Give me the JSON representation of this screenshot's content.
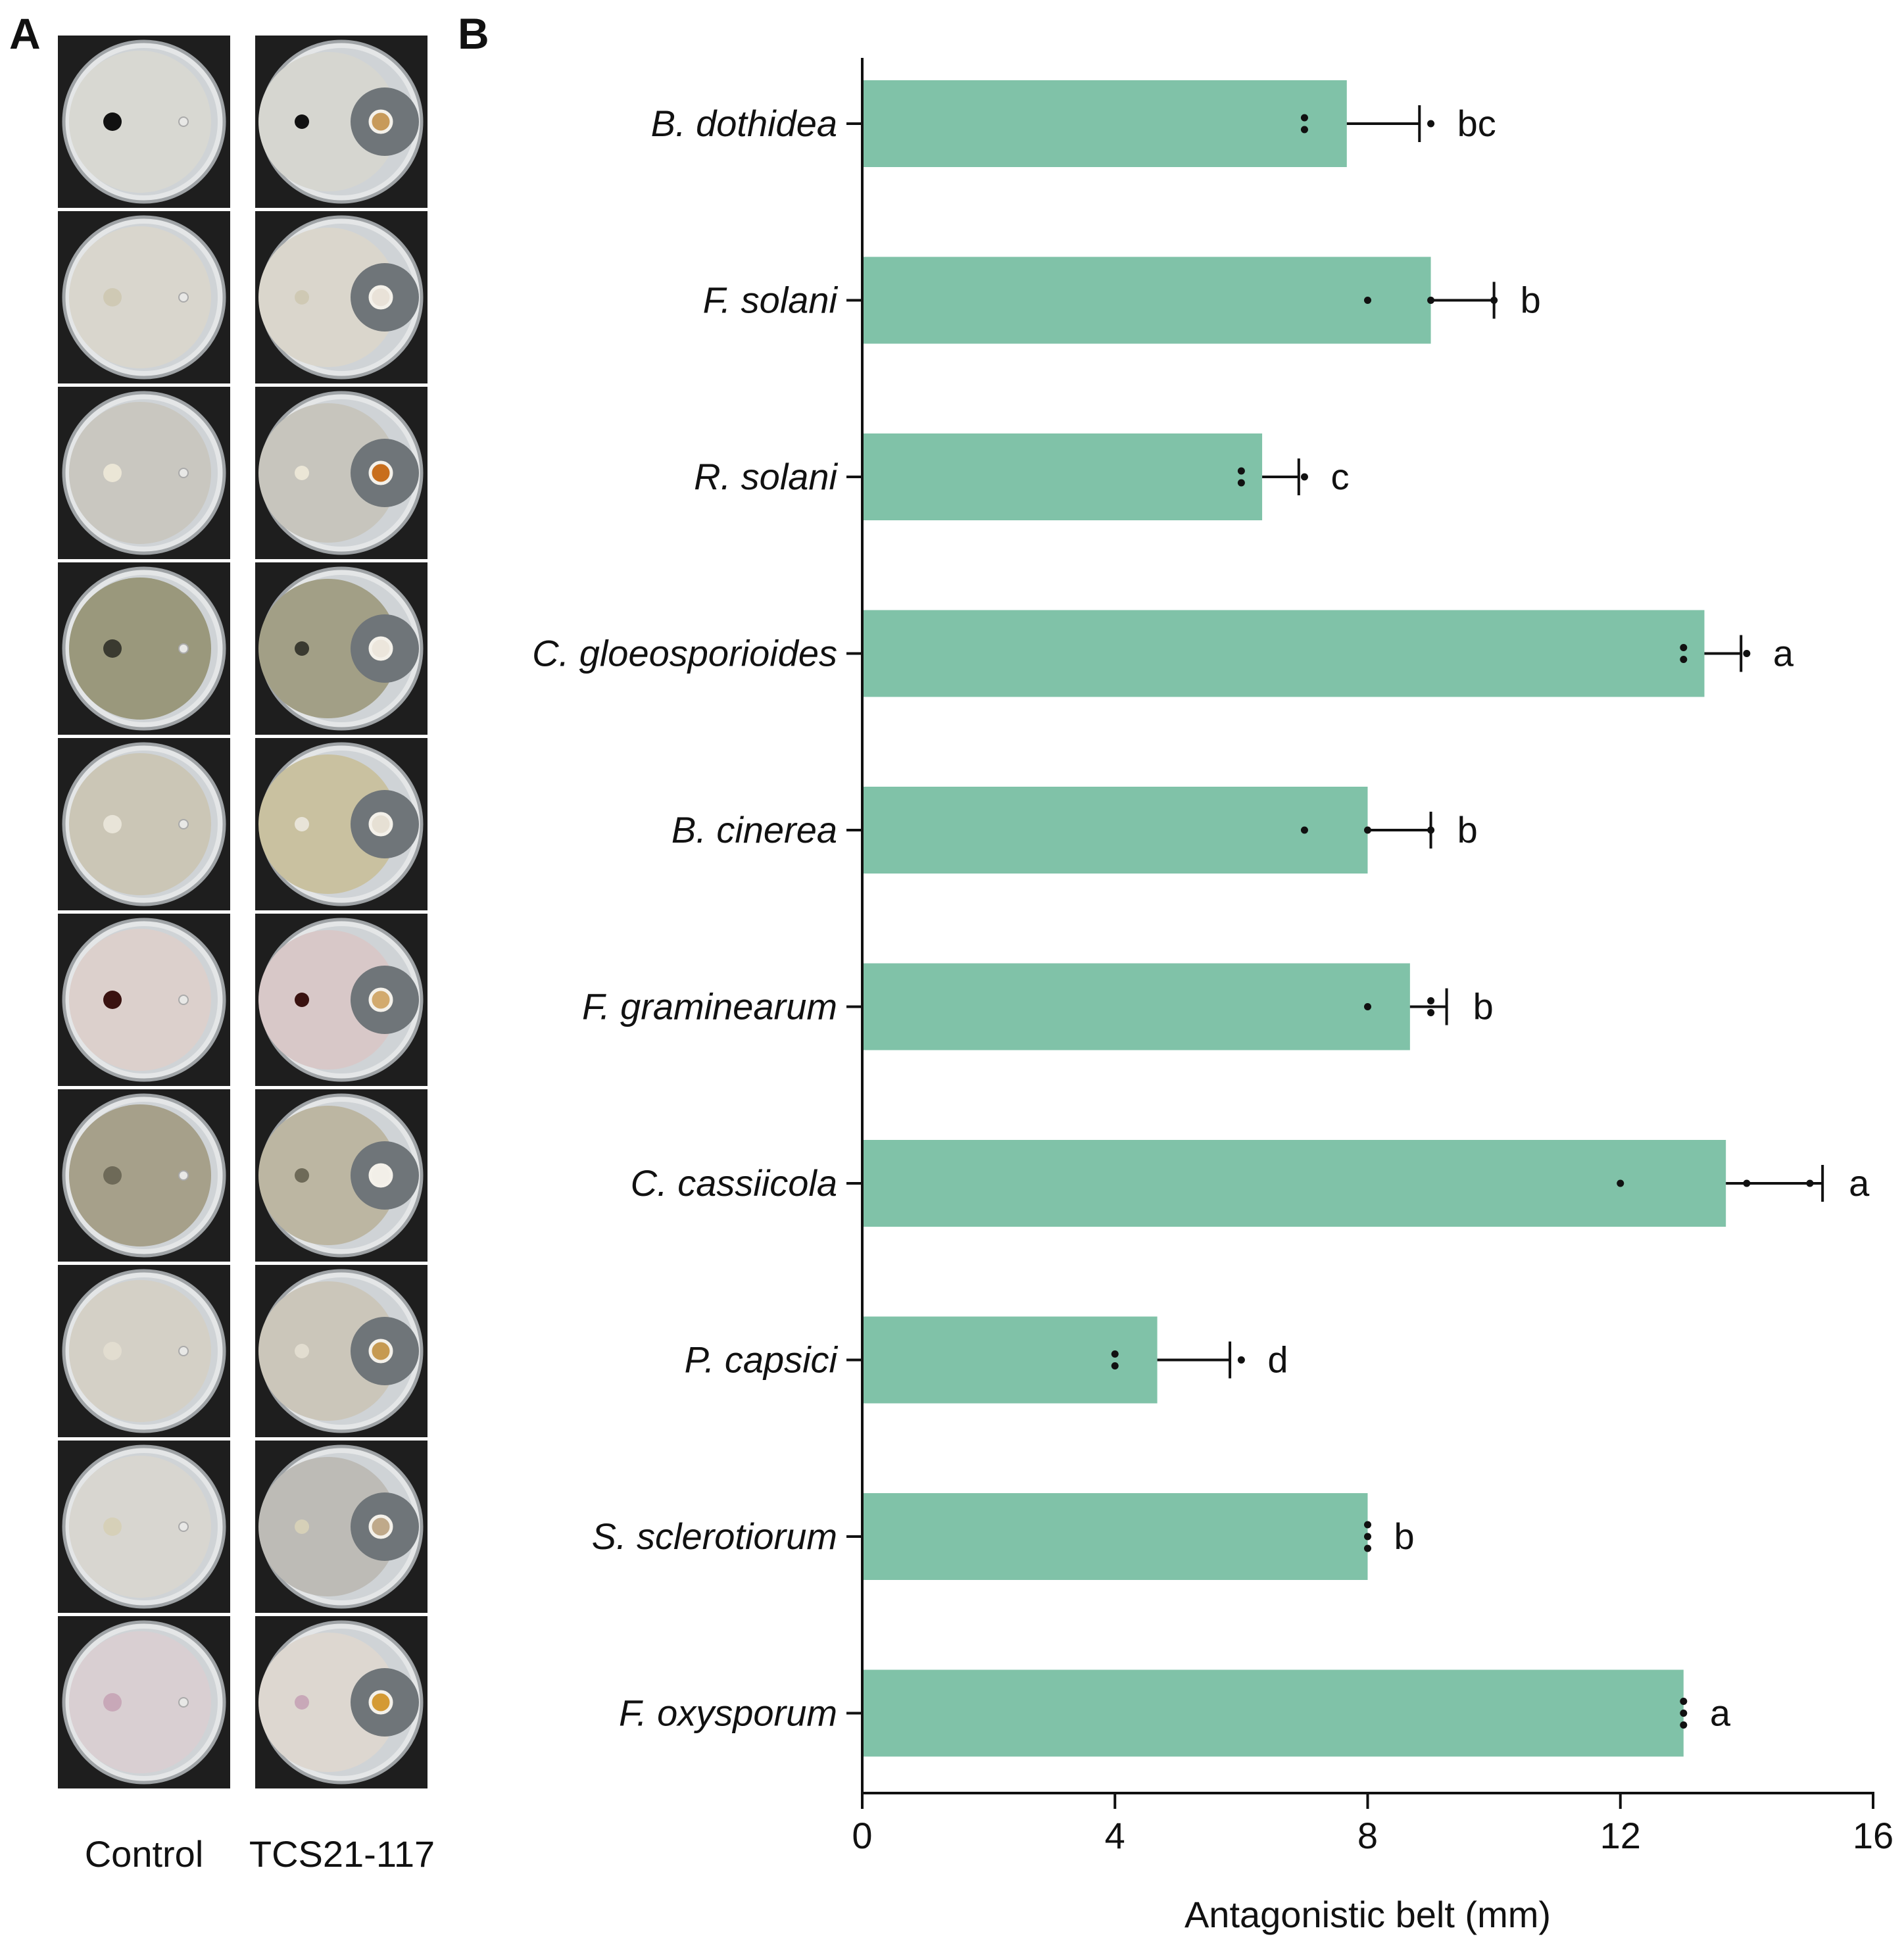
{
  "panels": {
    "a_letter": "A",
    "b_letter": "B"
  },
  "panel_a": {
    "column_labels": [
      "Control",
      "TCS21-117"
    ],
    "rows": [
      {
        "pathogen": "B. dothidea",
        "control_fungus": "#d8d8d2",
        "control_center": "#111111",
        "treated_fungus": "#d6d6d0",
        "well": "#c79a5a"
      },
      {
        "pathogen": "F. solani",
        "control_fungus": "#d9d6cd",
        "control_center": "#cfc9b4",
        "treated_fungus": "#dad6cc",
        "well": "#e9e2d8"
      },
      {
        "pathogen": "R. solani",
        "control_fungus": "#c9c7c0",
        "control_center": "#ebe6d6",
        "treated_fungus": "#c7c5bd",
        "well": "#c86e1c"
      },
      {
        "pathogen": "C. gloeosporioides",
        "control_fungus": "#9a987c",
        "control_center": "#3a3a30",
        "treated_fungus": "#a29f86",
        "well": "#ece6dc"
      },
      {
        "pathogen": "B. cinerea",
        "control_fungus": "#cbc6b6",
        "control_center": "#e8e4d8",
        "treated_fungus": "#c9c1a0",
        "well": "#e6e0d4"
      },
      {
        "pathogen": "F. graminearum",
        "control_fungus": "#dcd0cc",
        "control_center": "#3a1210",
        "treated_fungus": "#d8c8c8",
        "well": "#d2aa6e"
      },
      {
        "pathogen": "C. cassiicola",
        "control_fungus": "#a6a08a",
        "control_center": "#6e6a58",
        "treated_fungus": "#bcb6a2",
        "well": "#f2efe8"
      },
      {
        "pathogen": "P. capsici",
        "control_fungus": "#d4d0c6",
        "control_center": "#e2ddd0",
        "treated_fungus": "#cbc6ba",
        "well": "#c69a52"
      },
      {
        "pathogen": "S. sclerotiorum",
        "control_fungus": "#d8d6d0",
        "control_center": "#d6d0b8",
        "treated_fungus": "#bdbbb6",
        "well": "#bfa98a"
      },
      {
        "pathogen": "F. oxysporum",
        "control_fungus": "#d9cfd2",
        "control_center": "#c8a8b8",
        "treated_fungus": "#ddd7d0",
        "well": "#d49a34"
      }
    ]
  },
  "chart_data": {
    "type": "bar",
    "orientation": "horizontal",
    "categories": [
      "B. dothidea",
      "F. solani",
      "R. solani",
      "C. gloeosporioides",
      "B. cinerea",
      "F. graminearum",
      "C. cassiicola",
      "P. capsici",
      "S. sclerotiorum",
      "F. oxysporum"
    ],
    "values": [
      7.67,
      9.0,
      6.33,
      13.33,
      8.0,
      8.67,
      13.67,
      4.67,
      8.0,
      13.0
    ],
    "errors": [
      1.15,
      1.0,
      0.58,
      0.58,
      1.0,
      0.58,
      1.53,
      1.15,
      0,
      0
    ],
    "points": [
      [
        7,
        7,
        9
      ],
      [
        8,
        9,
        10
      ],
      [
        6,
        6,
        7
      ],
      [
        13,
        13,
        14
      ],
      [
        7,
        8,
        9
      ],
      [
        8,
        9,
        9
      ],
      [
        12,
        14,
        15
      ],
      [
        4,
        4,
        6
      ],
      [
        8,
        8,
        8
      ],
      [
        13,
        13,
        13
      ]
    ],
    "significance": [
      "bc",
      "b",
      "c",
      "a",
      "b",
      "b",
      "a",
      "d",
      "b",
      "a"
    ],
    "xlabel": "Antagonistic belt (mm)",
    "xlim": [
      0,
      16
    ],
    "xticks": [
      0,
      4,
      8,
      12,
      16
    ],
    "xtick_labels": [
      "0",
      "4",
      "8",
      "12",
      "16"
    ],
    "bar_color": "#80c2a8",
    "grid": false
  }
}
